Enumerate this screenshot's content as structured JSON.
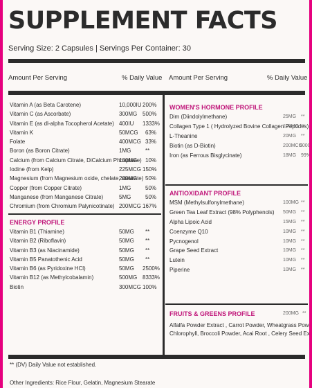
{
  "title": "SUPPLEMENT FACTS",
  "serving": "Serving Size: 2 Capsules | Servings Per Container: 30",
  "left_header": {
    "amount": "Amount Per Serving",
    "dv": "% Daily Value"
  },
  "right_header": {
    "amount": "Amount Per Serving",
    "dv": "% Daily Value"
  },
  "vitamins": [
    {
      "name": "Vitamin A (as Beta Carotene)",
      "amount": "10,000IU",
      "dv": "200%"
    },
    {
      "name": "Vitamin C (as Ascorbate)",
      "amount": "300MG",
      "dv": "500%"
    },
    {
      "name": "Vitamin E (as dl-alpha Tocopherol Acetate)",
      "amount": "400IU",
      "dv": "1333%"
    },
    {
      "name": "Vitamin K",
      "amount": "50MCG",
      "dv": "63%"
    },
    {
      "name": "Folate",
      "amount": "400MCG",
      "dv": "33%"
    },
    {
      "name": "Boron (as Boron Citrate)",
      "amount": "1MG",
      "dv": "**"
    },
    {
      "name": "Calcium (from Calcium Citrate, DiCalcium Phosphate)",
      "amount": "100MG",
      "dv": "10%"
    },
    {
      "name": "Iodine (from Kelp)",
      "amount": "225MCG",
      "dv": "150%"
    },
    {
      "name": "Magnesium (from Magnesium oxide, chelate, stearate)",
      "amount": "200MG",
      "dv": "50%"
    },
    {
      "name": "Copper (from Copper Citrate)",
      "amount": "1MG",
      "dv": "50%"
    },
    {
      "name": "Manganese (from Manganese Citrate)",
      "amount": "5MG",
      "dv": "50%"
    },
    {
      "name": "Chromium (from Chromium Palynicotinate)",
      "amount": "200MCG",
      "dv": "167%"
    }
  ],
  "energy": {
    "title": "ENERGY PROFILE",
    "items": [
      {
        "name": "Vitamin B1 (Thiamine)",
        "amount": "50MG",
        "dv": "**"
      },
      {
        "name": "Vitamin B2 (Riboflavin)",
        "amount": "50MG",
        "dv": "**"
      },
      {
        "name": "Vitamin B3 (as Niacinamide)",
        "amount": "50MG",
        "dv": "**"
      },
      {
        "name": "Vitamin B5 Panatothenic Acid",
        "amount": "50MG",
        "dv": "**"
      },
      {
        "name": "Vitamin B6 (as Pyridoxine HCl)",
        "amount": "50MG",
        "dv": "2500%"
      },
      {
        "name": "Vitamin B12 (as Methylcobalamin)",
        "amount": "500MG",
        "dv": "8333%"
      },
      {
        "name": "Biotin",
        "amount": "300MCG",
        "dv": "100%"
      }
    ]
  },
  "womens": {
    "title": "WOMEN'S HORMONE PROFILE",
    "items": [
      {
        "name": "Dim (Diindolylmethane)",
        "amount": "25MG",
        "dv": "**"
      },
      {
        "name": "Collagen Type 1 ( Hydrolyzed Bovine Collagen Peptides)",
        "amount": "100MG",
        "dv": "**"
      },
      {
        "name": "L-Theanine",
        "amount": "20MG",
        "dv": "**"
      },
      {
        "name": "Biotin (as D-Biotin)",
        "amount": "200MCG",
        "dv": "5000%"
      },
      {
        "name": "Iron (as Ferrous Bisglycinate)",
        "amount": "18MG",
        "dv": "99%"
      }
    ]
  },
  "antioxidant": {
    "title": "ANTIOXIDANT PROFILE",
    "items": [
      {
        "name": "MSM (Methylsulfonylmethane)",
        "amount": "100MG",
        "dv": "**"
      },
      {
        "name": "Green Tea Leaf Extract (98% Polyphenols)",
        "amount": "50MG",
        "dv": "**"
      },
      {
        "name": "Alpha Lipoic Acid",
        "amount": "15MG",
        "dv": "**"
      },
      {
        "name": "Coenzyme Q10",
        "amount": "10MG",
        "dv": "**"
      },
      {
        "name": "Pycnogenol",
        "amount": "10MG",
        "dv": "**"
      },
      {
        "name": "Grape Seed Extract",
        "amount": "10MG",
        "dv": "**"
      },
      {
        "name": "Lutein",
        "amount": "10MG",
        "dv": "**"
      },
      {
        "name": "Piperine",
        "amount": "10MG",
        "dv": "**"
      }
    ]
  },
  "fruits": {
    "title": "FRUITS & GREENS PROFILE",
    "amount": "200MG",
    "dv": "**",
    "line1": "Alfalfa Powder Extract , Carrot Powder, Wheatgrass Powder,",
    "line2": "Chlorophyll, Broccoli Powder, Acai Root , Celery Seed Extract."
  },
  "footnote": "** (DV) Daily Value not established.",
  "other_ingredients": "Other Ingredients: Rice Flour, Gelatin, Magnesium Stearate",
  "colors": {
    "accent": "#c0167a",
    "ink": "#2b2b2b",
    "border": "#e6007e"
  }
}
